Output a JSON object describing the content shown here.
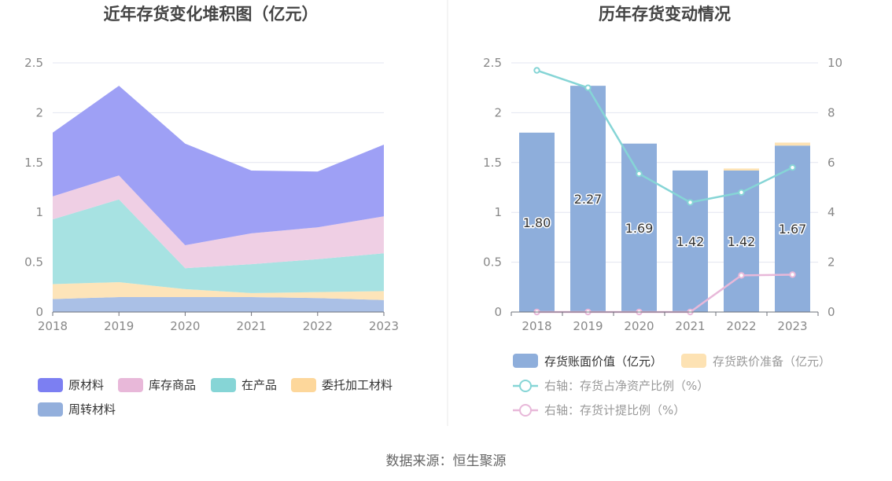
{
  "source_label": "数据来源：恒生聚源",
  "chart_data": [
    {
      "type": "area",
      "stacked": true,
      "title": "近年存货变化堆积图（亿元）",
      "x": [
        "2018",
        "2019",
        "2020",
        "2021",
        "2022",
        "2023"
      ],
      "ylim": [
        0,
        2.5
      ],
      "yticks": [
        "0",
        "0.5",
        "1",
        "1.5",
        "2",
        "2.5"
      ],
      "grid": true,
      "legend_position": "bottom-left",
      "series": [
        {
          "name": "周转材料",
          "color": "#aac0e6",
          "values": [
            0.13,
            0.15,
            0.15,
            0.15,
            0.14,
            0.12
          ]
        },
        {
          "name": "委托加工材料",
          "color": "#fde4b9",
          "values": [
            0.15,
            0.15,
            0.08,
            0.04,
            0.06,
            0.09
          ]
        },
        {
          "name": "在产品",
          "color": "#a7e2e2",
          "values": [
            0.65,
            0.83,
            0.21,
            0.29,
            0.33,
            0.38
          ]
        },
        {
          "name": "库存商品",
          "color": "#efcfe4",
          "values": [
            0.23,
            0.24,
            0.23,
            0.31,
            0.32,
            0.37
          ]
        },
        {
          "name": "原材料",
          "color": "#9ea0f5",
          "values": [
            0.64,
            0.9,
            1.02,
            0.63,
            0.56,
            0.72
          ]
        }
      ],
      "legend_colors": {
        "原材料": "#7c7ff2",
        "库存商品": "#e8b8d9",
        "在产品": "#86d5d6",
        "委托加工材料": "#fdd79b",
        "周转材料": "#93afdc"
      }
    },
    {
      "type": "bar",
      "title": "历年存货变动情况",
      "x": [
        "2018",
        "2019",
        "2020",
        "2021",
        "2022",
        "2023"
      ],
      "ylim": [
        0,
        2.5
      ],
      "yticks": [
        "0",
        "0.5",
        "1",
        "1.5",
        "2",
        "2.5"
      ],
      "y2lim": [
        0,
        10
      ],
      "y2ticks": [
        "0",
        "2",
        "4",
        "6",
        "8",
        "10"
      ],
      "grid": true,
      "legend_position": "bottom",
      "series": [
        {
          "name": "存货账面价值（亿元）",
          "kind": "bar",
          "color": "#8eaedb",
          "values": [
            1.8,
            2.27,
            1.69,
            1.42,
            1.42,
            1.67
          ],
          "labels": [
            "1.80",
            "2.27",
            "1.69",
            "1.42",
            "1.42",
            "1.67"
          ]
        },
        {
          "name": "存货跌价准备（亿元）",
          "kind": "bar-stacked",
          "color": "#fde2b3",
          "values": [
            0,
            0,
            0,
            0,
            0.02,
            0.03
          ]
        },
        {
          "name": "右轴：存货占净资产比例（%）",
          "kind": "line",
          "axis": "right",
          "color": "#86d5d6",
          "values": [
            9.7,
            9.0,
            5.55,
            4.4,
            4.8,
            5.8
          ]
        },
        {
          "name": "右轴：存货计提比例（%）",
          "kind": "line",
          "axis": "right",
          "color": "#e8b8d9",
          "values": [
            0,
            0,
            0,
            0,
            1.47,
            1.5
          ]
        }
      ]
    }
  ]
}
